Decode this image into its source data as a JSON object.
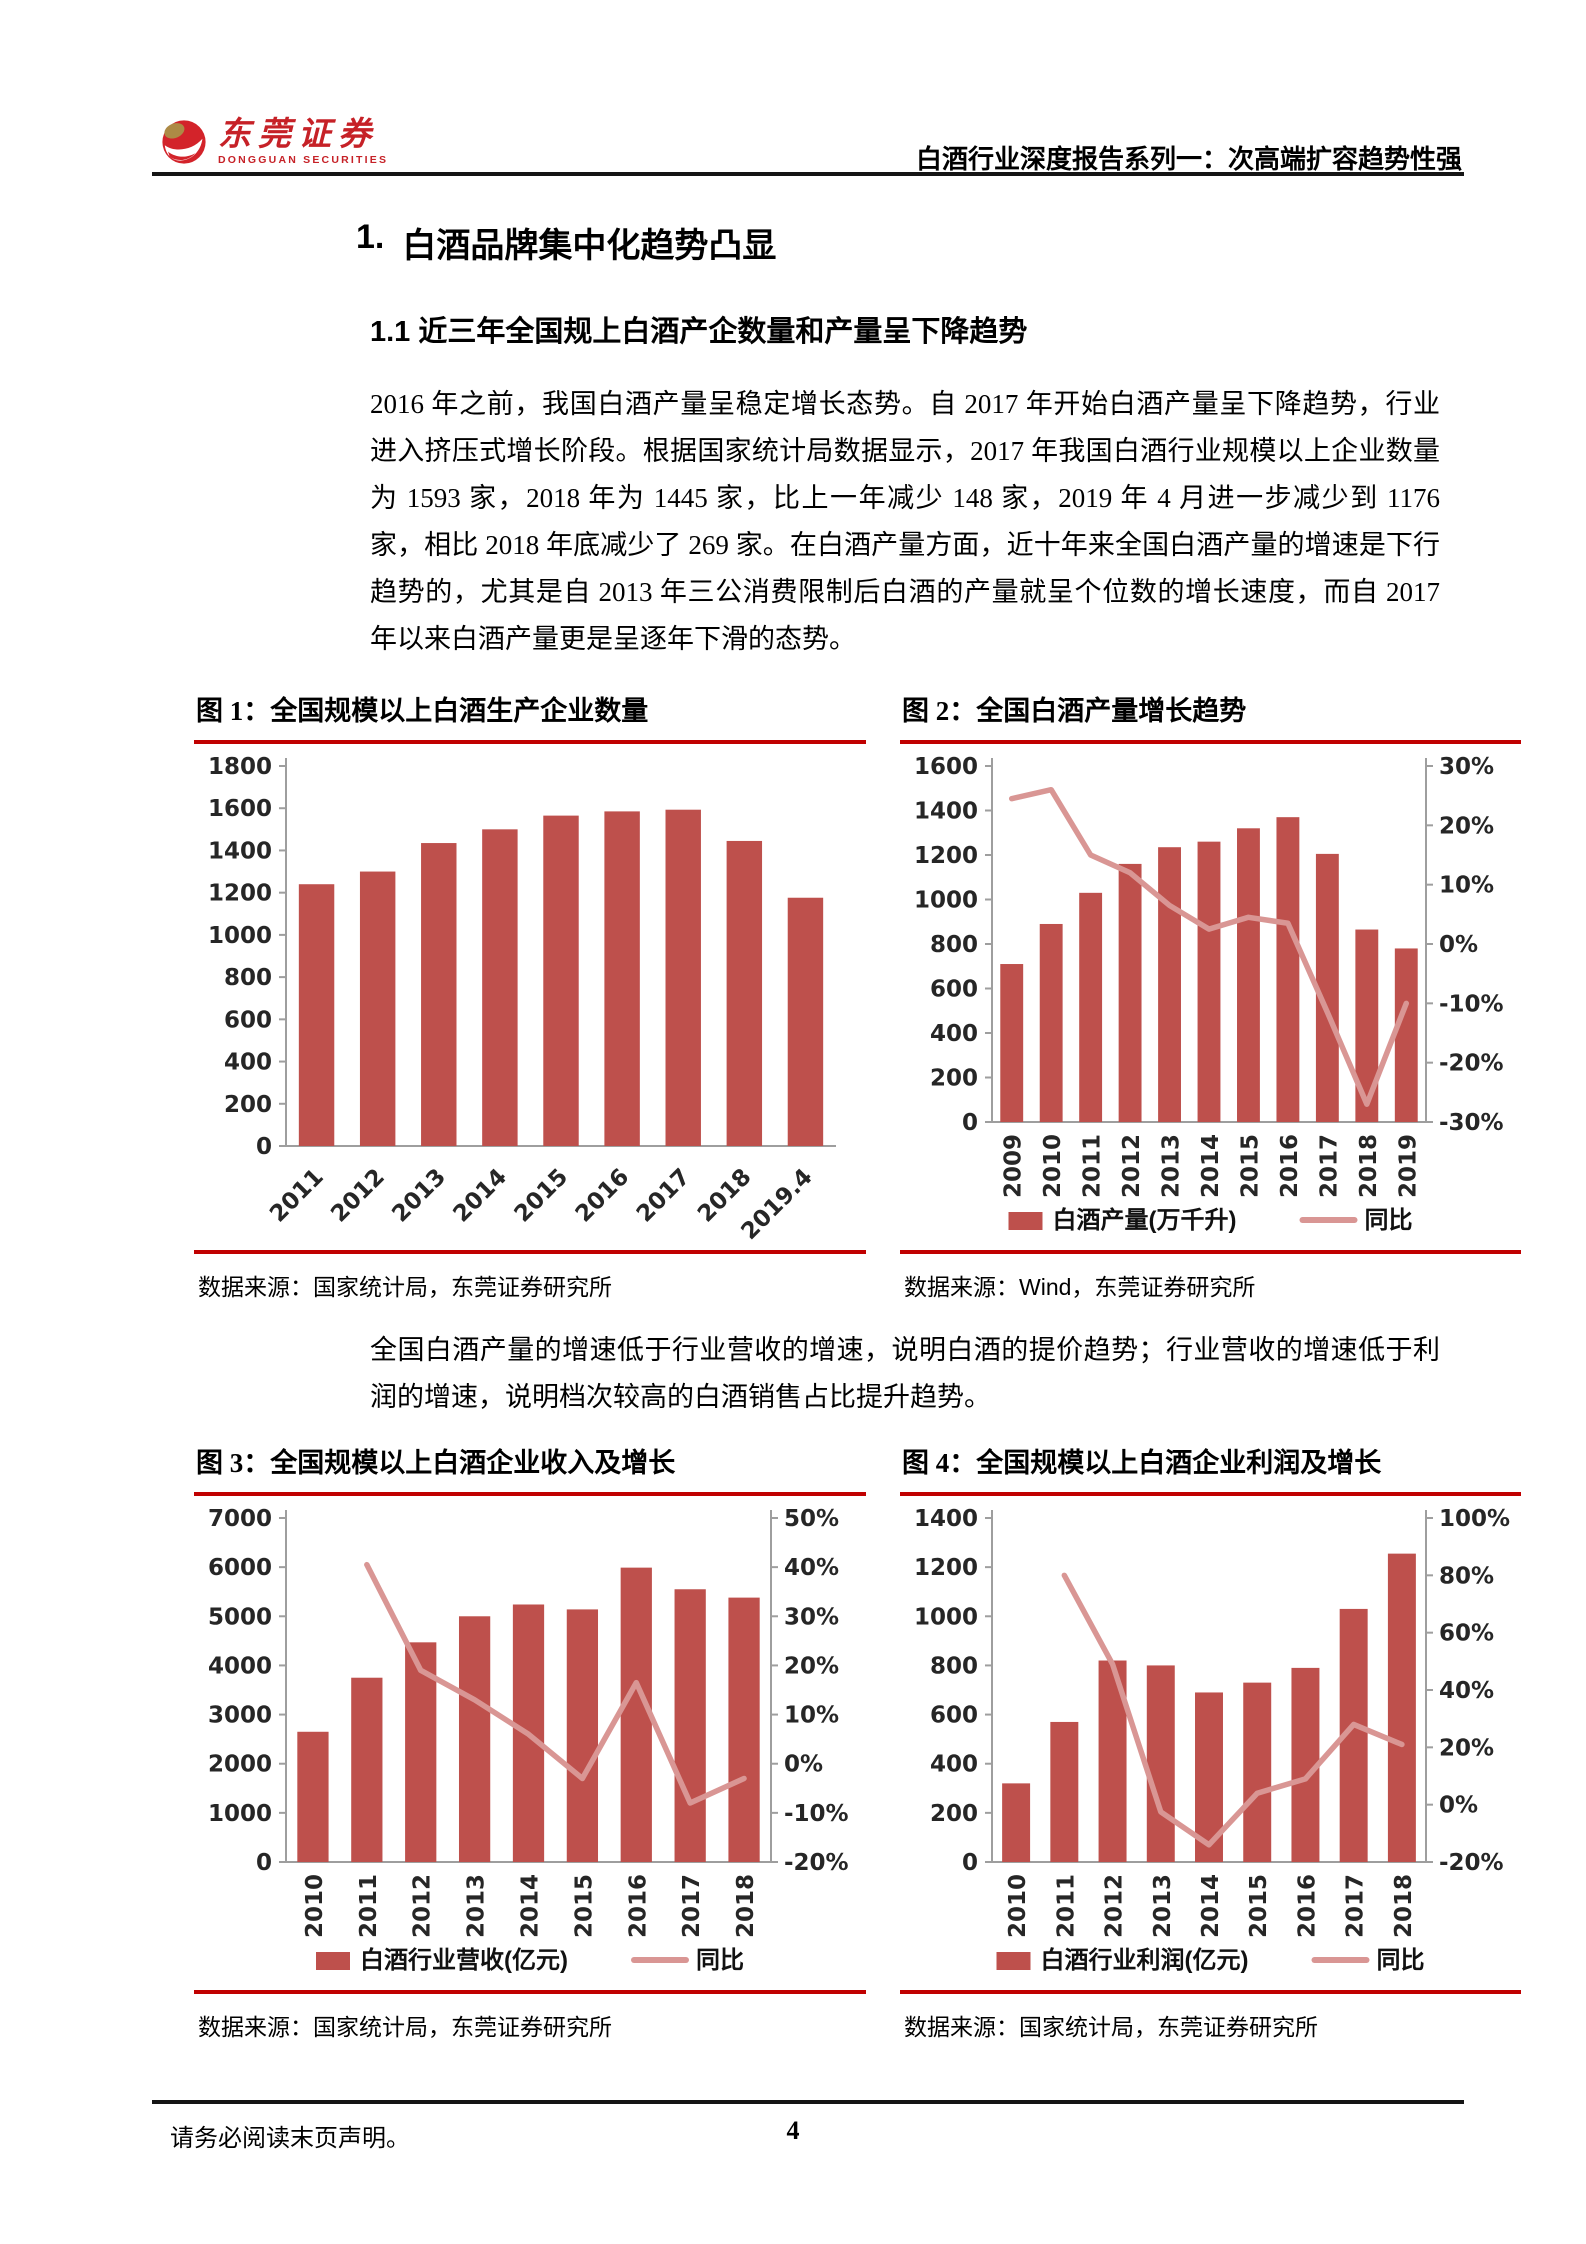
{
  "header": {
    "logo_cn": "东莞证券",
    "logo_en": "DONGGUAN SECURITIES",
    "report_series": "白酒行业深度报告系列一：次高端扩容趋势性强"
  },
  "section": {
    "number": "1.",
    "title": "白酒品牌集中化趋势凸显",
    "subsection": "1.1 近三年全国规上白酒产企数量和产量呈下降趋势"
  },
  "paragraphs": {
    "p1": "2016 年之前，我国白酒产量呈稳定增长态势。自 2017 年开始白酒产量呈下降趋势，行业进入挤压式增长阶段。根据国家统计局数据显示，2017 年我国白酒行业规模以上企业数量为 1593 家，2018 年为 1445 家，比上一年减少 148 家，2019 年 4 月进一步减少到 1176 家，相比 2018 年底减少了 269 家。在白酒产量方面，近十年来全国白酒产量的增速是下行趋势的，尤其是自 2013 年三公消费限制后白酒的产量就呈个位数的增长速度，而自 2017 年以来白酒产量更是呈逐年下滑的态势。",
    "p2": "全国白酒产量的增速低于行业营收的增速，说明白酒的提价趋势；行业营收的增速低于利润的增速，说明档次较高的白酒销售占比提升趋势。"
  },
  "sources": [
    "数据来源：国家统计局，东莞证券研究所",
    "数据来源：Wind，东莞证券研究所",
    "数据来源：国家统计局，东莞证券研究所",
    "数据来源：国家统计局，东莞证券研究所"
  ],
  "chart_data": [
    {
      "type": "bar",
      "title": "图 1：全国规模以上白酒生产企业数量",
      "categories": [
        "2011",
        "2012",
        "2013",
        "2014",
        "2015",
        "2016",
        "2017",
        "2018",
        "2019.4"
      ],
      "series": [
        {
          "name": "规模以上白酒生产企业数量",
          "type": "bar",
          "values": [
            1240,
            1300,
            1435,
            1500,
            1565,
            1585,
            1593,
            1445,
            1176
          ]
        }
      ],
      "ylim_left": [
        0,
        1800
      ],
      "ytick_left": 200,
      "x_label_rotation": -45,
      "legend": false,
      "grid": false
    },
    {
      "type": "bar+line",
      "title": "图 2：全国白酒产量增长趋势",
      "categories": [
        "2009",
        "2010",
        "2011",
        "2012",
        "2013",
        "2014",
        "2015",
        "2016",
        "2017",
        "2018",
        "2019"
      ],
      "series": [
        {
          "name": "白酒产量(万千升)",
          "type": "bar",
          "values": [
            710,
            890,
            1030,
            1160,
            1235,
            1260,
            1320,
            1370,
            1205,
            865,
            780
          ]
        },
        {
          "name": "同比",
          "type": "line",
          "axis": "right",
          "values": [
            24.5,
            26,
            15,
            12,
            6.5,
            2.5,
            4.5,
            3.5,
            -11.5,
            -27,
            -10
          ]
        }
      ],
      "ylim_left": [
        0,
        1600
      ],
      "ytick_left": 200,
      "axis_right": true,
      "ylim_right": [
        -30,
        30
      ],
      "ytick_right": 10,
      "x_label_rotation": -90,
      "legend": true,
      "grid": false,
      "legend_position": "bottom"
    },
    {
      "type": "bar+line",
      "title": "图 3：全国规模以上白酒企业收入及增长",
      "categories": [
        "2010",
        "2011",
        "2012",
        "2013",
        "2014",
        "2015",
        "2016",
        "2017",
        "2018"
      ],
      "series": [
        {
          "name": "白酒行业营收(亿元)",
          "type": "bar",
          "values": [
            2650,
            3750,
            4470,
            5000,
            5240,
            5140,
            5990,
            5550,
            5380
          ]
        },
        {
          "name": "同比",
          "type": "line",
          "axis": "right",
          "values": [
            null,
            40.5,
            19,
            13,
            6,
            -3,
            16.5,
            -8,
            -3
          ]
        }
      ],
      "ylim_left": [
        0,
        7000
      ],
      "ytick_left": 1000,
      "axis_right": true,
      "ylim_right": [
        -20,
        50
      ],
      "ytick_right": 10,
      "x_label_rotation": -90,
      "legend": true,
      "grid": false,
      "legend_position": "bottom"
    },
    {
      "type": "bar+line",
      "title": "图 4：全国规模以上白酒企业利润及增长",
      "categories": [
        "2010",
        "2011",
        "2012",
        "2013",
        "2014",
        "2015",
        "2016",
        "2017",
        "2018"
      ],
      "series": [
        {
          "name": "白酒行业利润(亿元)",
          "type": "bar",
          "values": [
            320,
            570,
            820,
            800,
            690,
            730,
            790,
            1030,
            1255
          ]
        },
        {
          "name": "同比",
          "type": "line",
          "axis": "right",
          "values": [
            null,
            80,
            49,
            -2.5,
            -14,
            4,
            9,
            28,
            21
          ]
        }
      ],
      "ylim_left": [
        0,
        1400
      ],
      "ytick_left": 200,
      "axis_right": true,
      "ylim_right": [
        -20,
        100
      ],
      "ytick_right": 20,
      "x_label_rotation": -90,
      "legend": true,
      "grid": false,
      "legend_position": "bottom"
    }
  ],
  "footer": {
    "disclaimer": "请务必阅读末页声明。",
    "page_number": "4"
  },
  "colors": {
    "bar": "#BE504C",
    "line": "#D99694",
    "fig_rule": "#C00000",
    "brand_red": "#C62127",
    "axis": "#9E9E9E"
  }
}
